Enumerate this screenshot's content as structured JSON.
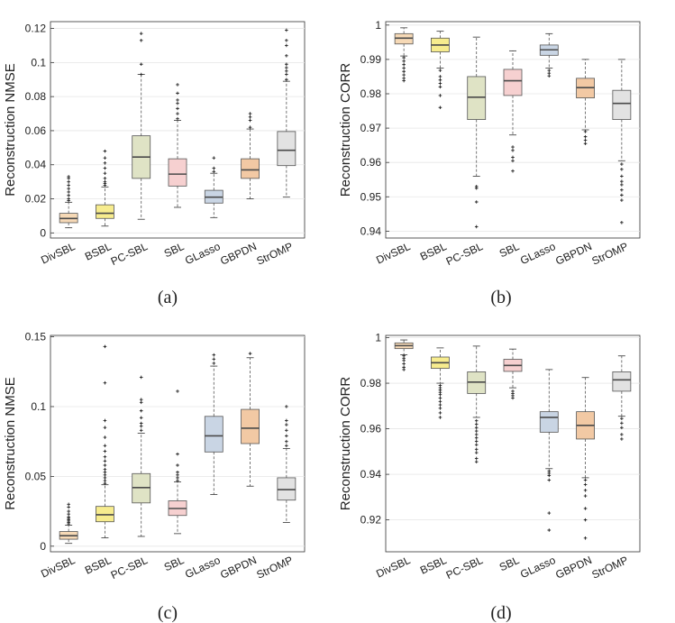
{
  "figure": {
    "captions": [
      "(a)",
      "(b)",
      "(c)",
      "(d)"
    ]
  },
  "colors": {
    "DivSBL": "#f6d9b6",
    "BSBL": "#f7ec8e",
    "PC-SBL": "#dfe3c5",
    "SBL": "#f6d0d0",
    "GLasso": "#c9d5e4",
    "GBPDN": "#f2c9a4",
    "StrOMP": "#e2e2e2",
    "median": "#4a4a4a",
    "outlier": "#222222"
  },
  "chart_data": [
    {
      "type": "box",
      "panel": "a",
      "ylabel": "Reconstruction NMSE",
      "ylim": [
        -0.003,
        0.124
      ],
      "yticks": [
        0,
        0.02,
        0.04,
        0.06,
        0.08,
        0.1,
        0.12
      ],
      "ytick_labels": [
        "0",
        "0.02",
        "0.04",
        "0.06",
        "0.08",
        "0.1",
        "0.12"
      ],
      "grid": true,
      "categories": [
        "DivSBL",
        "BSBL",
        "PC-SBL",
        "SBL",
        "GLasso",
        "GBPDN",
        "StrOMP"
      ],
      "boxes": [
        {
          "whislo": 0.003,
          "q1": 0.006,
          "med": 0.0085,
          "q3": 0.0115,
          "whishi": 0.018,
          "fliers": [
            0.019,
            0.02,
            0.022,
            0.024,
            0.026,
            0.028,
            0.03,
            0.032,
            0.033
          ]
        },
        {
          "whislo": 0.004,
          "q1": 0.0085,
          "med": 0.0115,
          "q3": 0.0165,
          "whishi": 0.027,
          "fliers": [
            0.028,
            0.029,
            0.03,
            0.032,
            0.035,
            0.038,
            0.041,
            0.044,
            0.048
          ]
        },
        {
          "whislo": 0.008,
          "q1": 0.032,
          "med": 0.0445,
          "q3": 0.057,
          "whishi": 0.093,
          "fliers": [
            0.093,
            0.099,
            0.113,
            0.117
          ]
        },
        {
          "whislo": 0.015,
          "q1": 0.0275,
          "med": 0.0345,
          "q3": 0.0435,
          "whishi": 0.066,
          "fliers": [
            0.067,
            0.07,
            0.073,
            0.076,
            0.078,
            0.082,
            0.087
          ]
        },
        {
          "whislo": 0.009,
          "q1": 0.0175,
          "med": 0.021,
          "q3": 0.025,
          "whishi": 0.035,
          "fliers": [
            0.036,
            0.038,
            0.044
          ]
        },
        {
          "whislo": 0.02,
          "q1": 0.032,
          "med": 0.037,
          "q3": 0.0435,
          "whishi": 0.061,
          "fliers": [
            0.062,
            0.066,
            0.068,
            0.07
          ]
        },
        {
          "whislo": 0.021,
          "q1": 0.0395,
          "med": 0.0485,
          "q3": 0.0595,
          "whishi": 0.089,
          "fliers": [
            0.09,
            0.093,
            0.095,
            0.097,
            0.099,
            0.104,
            0.11,
            0.113,
            0.119
          ]
        }
      ]
    },
    {
      "type": "box",
      "panel": "b",
      "ylabel": "Reconstruction CORR",
      "ylim": [
        0.938,
        1.001
      ],
      "yticks": [
        0.94,
        0.95,
        0.96,
        0.97,
        0.98,
        0.99,
        1
      ],
      "ytick_labels": [
        "0.94",
        "0.95",
        "0.96",
        "0.97",
        "0.98",
        "0.99",
        "1"
      ],
      "grid": true,
      "categories": [
        "DivSBL",
        "BSBL",
        "PC-SBL",
        "SBL",
        "GLasso",
        "GBPDN",
        "StrOMP"
      ],
      "boxes": [
        {
          "whislo": 0.991,
          "q1": 0.9945,
          "med": 0.9962,
          "q3": 0.9975,
          "whishi": 0.9992,
          "fliers": [
            0.9905,
            0.9895,
            0.9885,
            0.9875,
            0.9865,
            0.9855,
            0.9845,
            0.9838
          ]
        },
        {
          "whislo": 0.9875,
          "q1": 0.9922,
          "med": 0.9942,
          "q3": 0.9962,
          "whishi": 0.9982,
          "fliers": [
            0.9868,
            0.985,
            0.984,
            0.983,
            0.982,
            0.9795,
            0.976
          ]
        },
        {
          "whislo": 0.956,
          "q1": 0.9725,
          "med": 0.979,
          "q3": 0.985,
          "whishi": 0.9965,
          "fliers": [
            0.953,
            0.9525,
            0.9485,
            0.9413
          ]
        },
        {
          "whislo": 0.968,
          "q1": 0.9795,
          "med": 0.9838,
          "q3": 0.9871,
          "whishi": 0.9925,
          "fliers": [
            0.9645,
            0.9635,
            0.9615,
            0.9605,
            0.9575
          ]
        },
        {
          "whislo": 0.9875,
          "q1": 0.9912,
          "med": 0.9928,
          "q3": 0.9942,
          "whishi": 0.9975,
          "fliers": [
            0.9868,
            0.986,
            0.9852
          ]
        },
        {
          "whislo": 0.9695,
          "q1": 0.9788,
          "med": 0.9818,
          "q3": 0.9845,
          "whishi": 0.99,
          "fliers": [
            0.969,
            0.9675,
            0.9665,
            0.9655
          ]
        },
        {
          "whislo": 0.9605,
          "q1": 0.9725,
          "med": 0.9772,
          "q3": 0.981,
          "whishi": 0.99,
          "fliers": [
            0.9595,
            0.958,
            0.956,
            0.9545,
            0.9535,
            0.952,
            0.9505,
            0.949,
            0.9425
          ]
        }
      ]
    },
    {
      "type": "box",
      "panel": "c",
      "ylabel": "Reconstruction NMSE",
      "ylim": [
        -0.004,
        0.151
      ],
      "yticks": [
        0,
        0.05,
        0.1,
        0.15
      ],
      "ytick_labels": [
        "0",
        "0.05",
        "0.1",
        "0.15"
      ],
      "grid": true,
      "categories": [
        "DivSBL",
        "BSBL",
        "PC-SBL",
        "SBL",
        "GLasso",
        "GBPDN",
        "StrOMP"
      ],
      "boxes": [
        {
          "whislo": 0.002,
          "q1": 0.005,
          "med": 0.0075,
          "q3": 0.0105,
          "whishi": 0.015,
          "fliers": [
            0.016,
            0.017,
            0.018,
            0.019,
            0.02,
            0.021,
            0.023,
            0.025,
            0.028,
            0.03
          ]
        },
        {
          "whislo": 0.006,
          "q1": 0.0175,
          "med": 0.0225,
          "q3": 0.0285,
          "whishi": 0.044,
          "fliers": [
            0.045,
            0.047,
            0.049,
            0.051,
            0.053,
            0.055,
            0.058,
            0.061,
            0.064,
            0.068,
            0.072,
            0.078,
            0.085,
            0.09,
            0.117,
            0.143
          ]
        },
        {
          "whislo": 0.007,
          "q1": 0.031,
          "med": 0.042,
          "q3": 0.052,
          "whishi": 0.081,
          "fliers": [
            0.083,
            0.086,
            0.088,
            0.092,
            0.097,
            0.103,
            0.105,
            0.121
          ]
        },
        {
          "whislo": 0.009,
          "q1": 0.022,
          "med": 0.027,
          "q3": 0.0325,
          "whishi": 0.046,
          "fliers": [
            0.047,
            0.049,
            0.051,
            0.053,
            0.058,
            0.066,
            0.111
          ]
        },
        {
          "whislo": 0.037,
          "q1": 0.0675,
          "med": 0.079,
          "q3": 0.093,
          "whishi": 0.129,
          "fliers": [
            0.131,
            0.134,
            0.137
          ]
        },
        {
          "whislo": 0.043,
          "q1": 0.0735,
          "med": 0.0845,
          "q3": 0.098,
          "whishi": 0.135,
          "fliers": [
            0.138
          ]
        },
        {
          "whislo": 0.017,
          "q1": 0.033,
          "med": 0.0405,
          "q3": 0.049,
          "whishi": 0.07,
          "fliers": [
            0.072,
            0.075,
            0.079,
            0.083,
            0.087,
            0.09,
            0.1
          ]
        }
      ]
    },
    {
      "type": "box",
      "panel": "d",
      "ylabel": "Reconstruction CORR",
      "ylim": [
        0.906,
        1.001
      ],
      "yticks": [
        0.92,
        0.94,
        0.96,
        0.98,
        1
      ],
      "ytick_labels": [
        "0.92",
        "0.94",
        "0.96",
        "0.98",
        "1"
      ],
      "grid": true,
      "categories": [
        "DivSBL",
        "BSBL",
        "PC-SBL",
        "SBL",
        "GLasso",
        "GBPDN",
        "StrOMP"
      ],
      "boxes": [
        {
          "whislo": 0.9925,
          "q1": 0.9952,
          "med": 0.9965,
          "q3": 0.9977,
          "whishi": 0.999,
          "fliers": [
            0.992,
            0.991,
            0.99,
            0.9885,
            0.987,
            0.986
          ]
        },
        {
          "whislo": 0.98,
          "q1": 0.9865,
          "med": 0.989,
          "q3": 0.9915,
          "whishi": 0.9955,
          "fliers": [
            0.979,
            0.978,
            0.977,
            0.976,
            0.975,
            0.9735,
            0.972,
            0.9705,
            0.969,
            0.967,
            0.965
          ]
        },
        {
          "whislo": 0.965,
          "q1": 0.9755,
          "med": 0.9805,
          "q3": 0.985,
          "whishi": 0.9963,
          "fliers": [
            0.9635,
            0.962,
            0.9605,
            0.959,
            0.9575,
            0.956,
            0.9545,
            0.953,
            0.951,
            0.9495,
            0.947,
            0.9455
          ]
        },
        {
          "whislo": 0.978,
          "q1": 0.9852,
          "med": 0.9878,
          "q3": 0.9905,
          "whishi": 0.995,
          "fliers": [
            0.9765,
            0.9755,
            0.9745,
            0.9735
          ]
        },
        {
          "whislo": 0.9425,
          "q1": 0.9585,
          "med": 0.965,
          "q3": 0.9675,
          "whishi": 0.986,
          "fliers": [
            0.9415,
            0.9405,
            0.9395,
            0.9375,
            0.923,
            0.9155
          ]
        },
        {
          "whislo": 0.9385,
          "q1": 0.9555,
          "med": 0.9615,
          "q3": 0.9675,
          "whishi": 0.9825,
          "fliers": [
            0.9375,
            0.9355,
            0.933,
            0.9305,
            0.925,
            0.92,
            0.912
          ]
        },
        {
          "whislo": 0.9655,
          "q1": 0.9765,
          "med": 0.9815,
          "q3": 0.985,
          "whishi": 0.992,
          "fliers": [
            0.9645,
            0.9625,
            0.9605,
            0.9575,
            0.9555
          ]
        }
      ]
    }
  ]
}
